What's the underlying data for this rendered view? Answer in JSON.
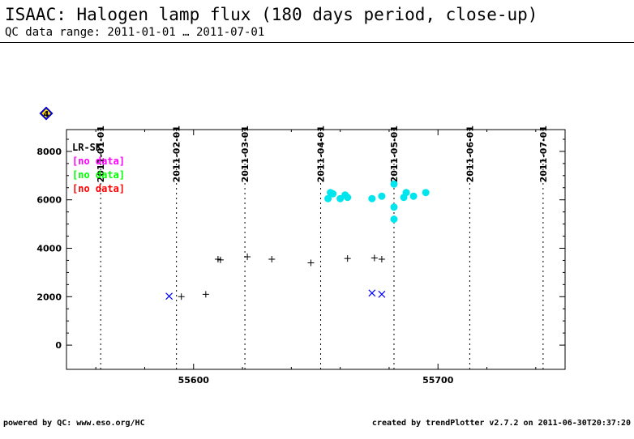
{
  "header": {
    "title": "ISAAC: Halogen lamp flux (180 days period, close-up)",
    "subtitle": "QC data range: 2011-01-01 … 2011-07-01"
  },
  "footer": {
    "left": "powered by QC: www.eso.org/HC",
    "right": "created by trendPlotter v2.7.2 on 2011-06-30T20:37:20"
  },
  "badge": {
    "text": "4",
    "icon": "diamond-icon",
    "fill": "#ffd700",
    "border": "#0000cc"
  },
  "chart_data": {
    "type": "scatter",
    "xlim": [
      55548,
      55752
    ],
    "ylim": [
      -1000,
      8900
    ],
    "x_ticks": [
      55600,
      55700
    ],
    "x_tick_labels": [
      "55600",
      "55700"
    ],
    "y_ticks": [
      0,
      2000,
      4000,
      6000,
      8000
    ],
    "y_tick_labels": [
      "0",
      "2000",
      "4000",
      "6000",
      "8000"
    ],
    "date_markers": [
      {
        "label": "2011-01-01",
        "mjd": 55562
      },
      {
        "label": "2011-02-01",
        "mjd": 55593
      },
      {
        "label": "2011-03-01",
        "mjd": 55621
      },
      {
        "label": "2011-04-01",
        "mjd": 55652
      },
      {
        "label": "2011-05-01",
        "mjd": 55682
      },
      {
        "label": "2011-06-01",
        "mjd": 55713
      },
      {
        "label": "2011-07-01",
        "mjd": 55743
      }
    ],
    "legend": [
      {
        "label": "LR-SK",
        "color": "#000000"
      },
      {
        "label": "[no data]",
        "color": "#ff00ff"
      },
      {
        "label": "[no data]",
        "color": "#00ff00"
      },
      {
        "label": "[no data]",
        "color": "#ff0000"
      }
    ],
    "series": [
      {
        "marker": "plus",
        "color": "#000000",
        "points": [
          [
            55595,
            2000
          ],
          [
            55605,
            2100
          ],
          [
            55610,
            3550
          ],
          [
            55611,
            3520
          ],
          [
            55622,
            3650
          ],
          [
            55632,
            3550
          ],
          [
            55648,
            3400
          ],
          [
            55663,
            3580
          ],
          [
            55674,
            3600
          ],
          [
            55677,
            3550
          ]
        ]
      },
      {
        "marker": "cross",
        "color": "#0000ff",
        "points": [
          [
            55590,
            2020
          ],
          [
            55673,
            2150
          ],
          [
            55677,
            2100
          ]
        ]
      },
      {
        "marker": "dot",
        "color": "#00e5ee",
        "points": [
          [
            55655,
            6050
          ],
          [
            55656,
            6300
          ],
          [
            55657,
            6250
          ],
          [
            55660,
            6050
          ],
          [
            55662,
            6200
          ],
          [
            55663,
            6100
          ],
          [
            55673,
            6050
          ],
          [
            55677,
            6150
          ],
          [
            55682,
            6650
          ],
          [
            55682,
            5700
          ],
          [
            55682,
            5200
          ],
          [
            55686,
            6100
          ],
          [
            55687,
            6300
          ],
          [
            55690,
            6150
          ],
          [
            55695,
            6300
          ]
        ]
      }
    ]
  }
}
